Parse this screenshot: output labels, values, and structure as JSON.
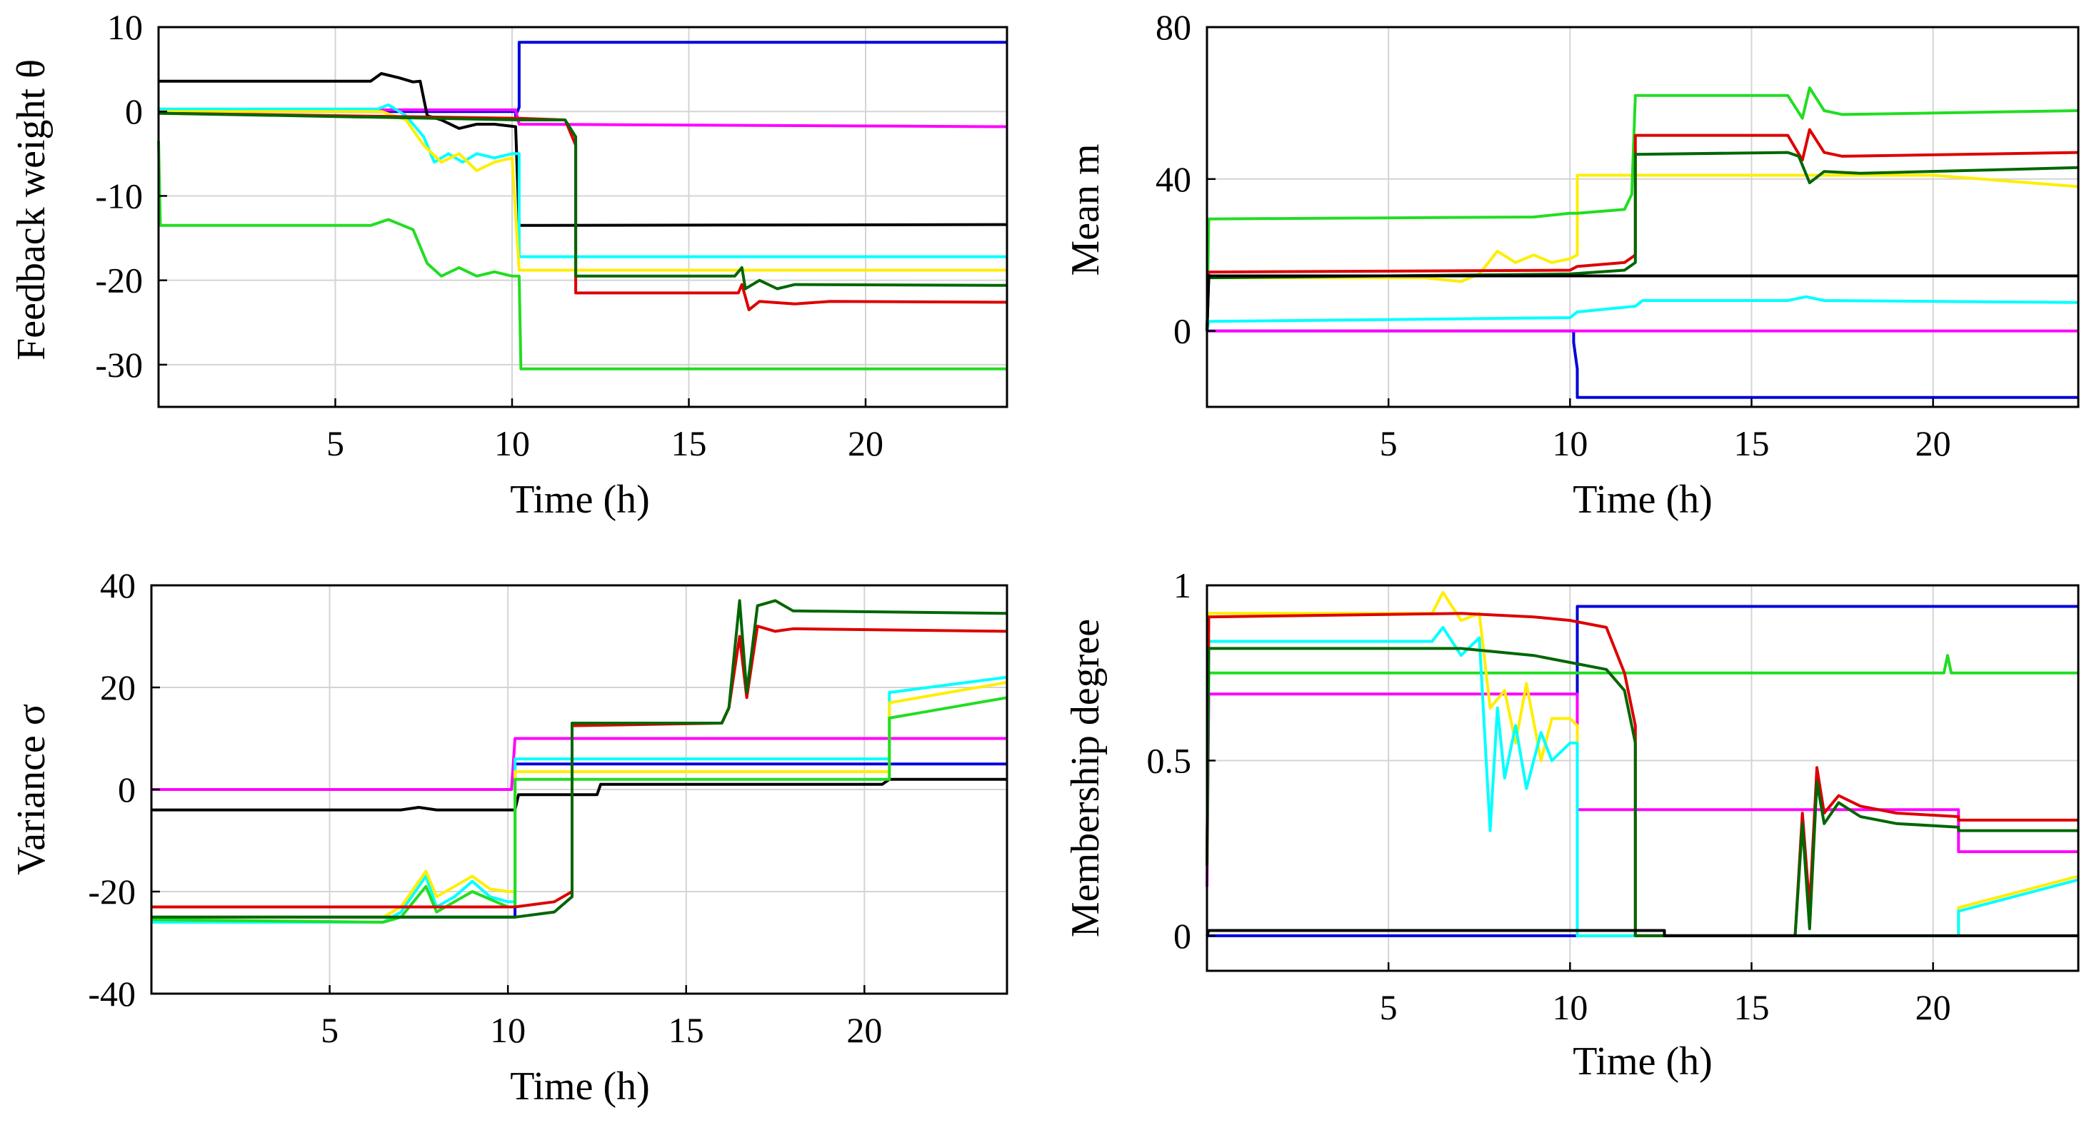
{
  "chart_data": [
    {
      "type": "line",
      "xlabel": "Time (h)",
      "ylabel": "Feedback weight θ",
      "xlim": [
        0,
        24
      ],
      "ylim": [
        -35,
        10
      ],
      "xticks": [
        5,
        10,
        15,
        20
      ],
      "yticks": [
        10,
        0,
        -10,
        -20,
        -30
      ],
      "grid": true,
      "series": [
        {
          "color": "#0000dd",
          "x": [
            0,
            10.1,
            10.1,
            10.2,
            10.2,
            24
          ],
          "y": [
            0,
            0,
            -0.5,
            0.5,
            8.2,
            8.2
          ]
        },
        {
          "color": "#ff00ff",
          "x": [
            0,
            10.1,
            10.2,
            24
          ],
          "y": [
            0.2,
            0.2,
            -1.5,
            -1.8
          ]
        },
        {
          "color": "#000000",
          "x": [
            0,
            6,
            6.3,
            6.8,
            7.2,
            7.4,
            7.6,
            8,
            8.5,
            9,
            9.5,
            10.1,
            10.2,
            24
          ],
          "y": [
            3.6,
            3.6,
            4.5,
            4,
            3.5,
            3.6,
            -0.5,
            -1,
            -2,
            -1.5,
            -1.5,
            -1.8,
            -13.5,
            -13.4
          ]
        },
        {
          "color": "#00ffff",
          "x": [
            0,
            6.2,
            6.5,
            7,
            7.5,
            7.8,
            8.2,
            8.6,
            9,
            9.5,
            10,
            10.2,
            10.2,
            24
          ],
          "y": [
            0.3,
            0.3,
            0.8,
            -0.5,
            -3,
            -6,
            -5,
            -6,
            -5,
            -5.5,
            -5,
            -5,
            -17.2,
            -17.2
          ]
        },
        {
          "color": "#ffee00",
          "x": [
            0,
            6.3,
            7,
            7.5,
            8,
            8.5,
            9,
            9.5,
            10,
            10.2,
            24
          ],
          "y": [
            0,
            0,
            -1,
            -4,
            -6,
            -5,
            -7,
            -6,
            -5.5,
            -18.8,
            -18.8
          ]
        },
        {
          "color": "#22dd22",
          "x": [
            0,
            0.05,
            6,
            6.5,
            7.2,
            7.6,
            8,
            8.5,
            9,
            9.5,
            10,
            10.2,
            10.25,
            24
          ],
          "y": [
            -3.5,
            -13.5,
            -13.5,
            -12.8,
            -14,
            -18,
            -19.5,
            -18.5,
            -19.5,
            -19,
            -19.5,
            -19.5,
            -30.5,
            -30.5
          ]
        },
        {
          "color": "#dd0000",
          "x": [
            0,
            10.2,
            11.5,
            11.8,
            11.8,
            16.4,
            16.5,
            16.7,
            17,
            18,
            19,
            24
          ],
          "y": [
            -0.2,
            -0.8,
            -1,
            -4,
            -21.5,
            -21.5,
            -20.5,
            -23.5,
            -22.5,
            -22.8,
            -22.5,
            -22.6
          ]
        },
        {
          "color": "#006600",
          "x": [
            0,
            10.2,
            11.5,
            11.8,
            11.8,
            16.3,
            16.5,
            16.6,
            17,
            17.5,
            18,
            24
          ],
          "y": [
            -0.2,
            -1,
            -1,
            -3,
            -19.5,
            -19.5,
            -18.5,
            -21,
            -20,
            -21,
            -20.5,
            -20.6
          ]
        }
      ]
    },
    {
      "type": "line",
      "xlabel": "Time (h)",
      "ylabel": "Mean m",
      "xlim": [
        0,
        24
      ],
      "ylim": [
        -20,
        80
      ],
      "xticks": [
        5,
        10,
        15,
        20
      ],
      "yticks": [
        80,
        40,
        0
      ],
      "grid": true,
      "series": [
        {
          "color": "#0000dd",
          "x": [
            0,
            10.1,
            10.1,
            10.2,
            10.2,
            24
          ],
          "y": [
            0,
            0,
            -3,
            -10,
            -17.5,
            -17.5
          ]
        },
        {
          "color": "#ff00ff",
          "x": [
            0,
            24
          ],
          "y": [
            0,
            0
          ]
        },
        {
          "color": "#00ffff",
          "x": [
            0,
            0.05,
            10,
            10.2,
            11.8,
            12,
            16,
            16.5,
            17,
            24
          ],
          "y": [
            0,
            2.5,
            3.5,
            5,
            6.5,
            8,
            8,
            9,
            8,
            7.5
          ]
        },
        {
          "color": "#ffee00",
          "x": [
            0,
            0.05,
            6,
            7,
            7.5,
            8,
            8.5,
            9,
            9.5,
            10,
            10.2,
            10.2,
            20,
            24
          ],
          "y": [
            0,
            14,
            14,
            13,
            15,
            21,
            18,
            20,
            18,
            19,
            20,
            41,
            41,
            38
          ]
        },
        {
          "color": "#22dd22",
          "x": [
            0,
            0.05,
            9,
            10,
            10.2,
            11.5,
            11.7,
            11.8,
            16,
            16.4,
            16.6,
            17,
            17.5,
            24
          ],
          "y": [
            0,
            29.5,
            30,
            31,
            31,
            32,
            36,
            62,
            62,
            56,
            64,
            58,
            57,
            58
          ]
        },
        {
          "color": "#dd0000",
          "x": [
            0,
            0.05,
            10,
            10.2,
            11.5,
            11.8,
            11.8,
            16,
            16.4,
            16.6,
            17,
            17.5,
            24
          ],
          "y": [
            0,
            15.5,
            16,
            17,
            18,
            20,
            51.5,
            51.5,
            45,
            53,
            47,
            46,
            47
          ]
        },
        {
          "color": "#006600",
          "x": [
            0,
            0.05,
            10,
            11.5,
            11.8,
            11.8,
            16,
            16.3,
            16.6,
            17,
            18,
            24
          ],
          "y": [
            0,
            14,
            15,
            16,
            18,
            46.5,
            47,
            46,
            39,
            42,
            41.5,
            43
          ]
        },
        {
          "color": "#000000",
          "x": [
            0,
            0.05,
            24
          ],
          "y": [
            0,
            14.5,
            14.5
          ]
        }
      ]
    },
    {
      "type": "line",
      "xlabel": "Time (h)",
      "ylabel": "Variance σ",
      "xlim": [
        0,
        24
      ],
      "ylim": [
        -40,
        40
      ],
      "xticks": [
        5,
        10,
        15,
        20
      ],
      "yticks": [
        40,
        20,
        0,
        -20,
        -40
      ],
      "grid": true,
      "series": [
        {
          "color": "#ff00ff",
          "x": [
            0,
            10.1,
            10.2,
            24
          ],
          "y": [
            0,
            0,
            10,
            10
          ]
        },
        {
          "color": "#000000",
          "x": [
            0,
            7,
            7.5,
            8,
            10.2,
            10.3,
            12.5,
            12.6,
            20.5,
            20.7,
            24
          ],
          "y": [
            -4,
            -4,
            -3.5,
            -4,
            -4,
            -1,
            -1,
            1,
            1,
            2,
            2
          ]
        },
        {
          "color": "#0000dd",
          "x": [
            0,
            10.2,
            10.2,
            20.7,
            20.7,
            24
          ],
          "y": [
            -25,
            -25,
            5,
            5,
            5,
            5
          ]
        },
        {
          "color": "#00ffff",
          "x": [
            0,
            6.5,
            7,
            7.7,
            8,
            8.5,
            9,
            9.5,
            10,
            10.2,
            10.2,
            20.7,
            20.7,
            24
          ],
          "y": [
            -26,
            -26,
            -24,
            -17,
            -23,
            -21,
            -18,
            -21,
            -22,
            -22,
            6,
            6,
            19,
            22
          ]
        },
        {
          "color": "#ffee00",
          "x": [
            0,
            6.5,
            7,
            7.7,
            8,
            8.5,
            9,
            9.5,
            10,
            10.2,
            10.2,
            20.7,
            20.7,
            24
          ],
          "y": [
            -25,
            -25,
            -23,
            -16,
            -21,
            -19,
            -17,
            -19.5,
            -20,
            -20,
            3.5,
            3.5,
            17,
            21
          ]
        },
        {
          "color": "#22dd22",
          "x": [
            0,
            6.5,
            7,
            7.7,
            8,
            8.5,
            9,
            10,
            10.2,
            10.2,
            20.7,
            20.7,
            24
          ],
          "y": [
            -25.5,
            -26,
            -25,
            -19,
            -24,
            -22,
            -20,
            -23,
            -23,
            2,
            2,
            14,
            18
          ]
        },
        {
          "color": "#dd0000",
          "x": [
            0,
            10.2,
            11.3,
            11.8,
            11.8,
            16,
            16.2,
            16.5,
            16.7,
            17,
            17.5,
            18,
            24
          ],
          "y": [
            -23,
            -23,
            -22,
            -20,
            12.5,
            13,
            16,
            30,
            18,
            32,
            31,
            31.5,
            31
          ]
        },
        {
          "color": "#006600",
          "x": [
            0,
            10.2,
            11.3,
            11.8,
            11.8,
            16,
            16.2,
            16.5,
            16.7,
            17,
            17.5,
            18,
            24
          ],
          "y": [
            -25,
            -25,
            -24,
            -21,
            13,
            13,
            16,
            37,
            19,
            36,
            37,
            35,
            34.5
          ]
        }
      ]
    },
    {
      "type": "line",
      "xlabel": "Time (h)",
      "ylabel": "Membership degree",
      "xlim": [
        0,
        24
      ],
      "ylim": [
        -0.1,
        1
      ],
      "xticks": [
        5,
        10,
        15,
        20
      ],
      "yticks": [
        1,
        0.5,
        0
      ],
      "ytick_labels": [
        "1",
        "0.5",
        "0"
      ],
      "grid": true,
      "series": [
        {
          "color": "#0000dd",
          "x": [
            0,
            10.2,
            10.2,
            24
          ],
          "y": [
            0,
            0,
            0.94,
            0.94
          ]
        },
        {
          "color": "#22dd22",
          "x": [
            0,
            0.05,
            20.3,
            20.4,
            20.5,
            20.6,
            24
          ],
          "y": [
            0.2,
            0.75,
            0.75,
            0.8,
            0.75,
            0.75,
            0.75
          ]
        },
        {
          "color": "#ff00ff",
          "x": [
            0,
            0.05,
            10.2,
            10.2,
            20.7,
            20.7,
            24
          ],
          "y": [
            0.14,
            0.69,
            0.69,
            0.36,
            0.36,
            0.24,
            0.24
          ]
        },
        {
          "color": "#ffee00",
          "x": [
            0,
            0.05,
            6.2,
            6.5,
            7,
            7.5,
            7.8,
            8.2,
            8.5,
            8.8,
            9.2,
            9.5,
            10,
            10.2,
            10.2,
            20.7,
            20.7,
            24
          ],
          "y": [
            0.2,
            0.92,
            0.92,
            0.98,
            0.9,
            0.92,
            0.65,
            0.7,
            0.55,
            0.72,
            0.5,
            0.62,
            0.62,
            0.6,
            0,
            0,
            0.08,
            0.17
          ]
        },
        {
          "color": "#00ffff",
          "x": [
            0,
            0.05,
            6.2,
            6.5,
            7,
            7.5,
            7.8,
            8,
            8.2,
            8.5,
            8.8,
            9.2,
            9.5,
            10,
            10.2,
            10.2,
            20.7,
            20.7,
            24
          ],
          "y": [
            0.2,
            0.84,
            0.84,
            0.88,
            0.8,
            0.85,
            0.3,
            0.65,
            0.45,
            0.6,
            0.42,
            0.58,
            0.5,
            0.55,
            0.55,
            0,
            0,
            0.07,
            0.16
          ]
        },
        {
          "color": "#dd0000",
          "x": [
            0,
            0.05,
            7,
            9,
            10,
            11,
            11.5,
            11.8,
            11.8,
            16.2,
            16.4,
            16.6,
            16.8,
            17,
            17.4,
            18,
            19,
            20.7,
            20.7,
            24
          ],
          "y": [
            0.2,
            0.91,
            0.92,
            0.91,
            0.9,
            0.88,
            0.75,
            0.6,
            0,
            0,
            0.35,
            0.08,
            0.48,
            0.35,
            0.4,
            0.37,
            0.35,
            0.34,
            0.33,
            0.33
          ]
        },
        {
          "color": "#006600",
          "x": [
            0,
            0.05,
            7,
            9,
            10,
            11,
            11.5,
            11.8,
            11.8,
            16.2,
            16.4,
            16.6,
            16.8,
            17,
            17.4,
            18,
            19,
            20.7,
            20.7,
            24
          ],
          "y": [
            0.2,
            0.82,
            0.82,
            0.8,
            0.78,
            0.76,
            0.7,
            0.55,
            0,
            0,
            0.32,
            0.02,
            0.44,
            0.32,
            0.38,
            0.34,
            0.32,
            0.31,
            0.3,
            0.3
          ]
        },
        {
          "color": "#000000",
          "x": [
            0,
            0.05,
            12.6,
            12.6,
            24
          ],
          "y": [
            0,
            0.015,
            0.015,
            0,
            0
          ]
        }
      ]
    }
  ]
}
